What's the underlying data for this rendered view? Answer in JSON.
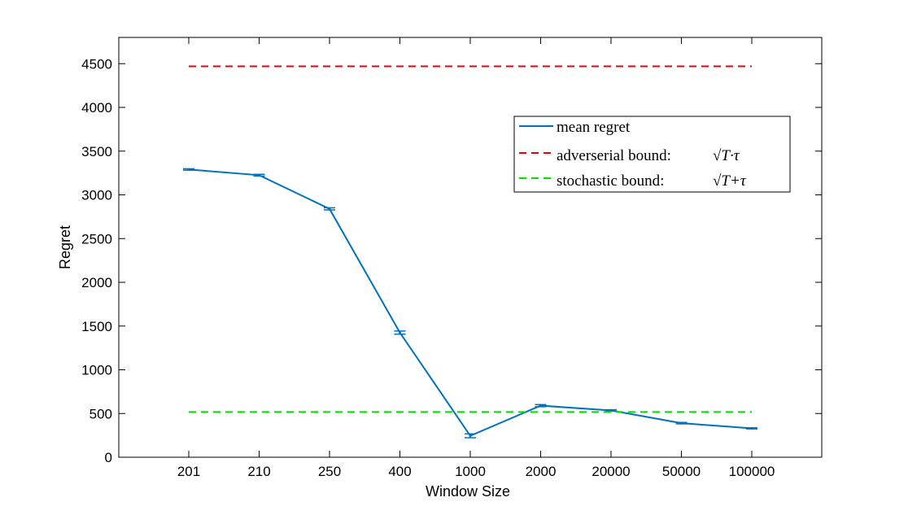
{
  "chart_data": {
    "type": "line",
    "xlabel": "Window Size",
    "ylabel": "Regret",
    "categories": [
      "201",
      "210",
      "250",
      "400",
      "1000",
      "2000",
      "20000",
      "50000",
      "100000"
    ],
    "ylim": [
      0,
      4800
    ],
    "yticks": [
      0,
      500,
      1000,
      1500,
      2000,
      2500,
      3000,
      3500,
      4000,
      4500
    ],
    "grid": false,
    "legend_position": "upper-right",
    "series": [
      {
        "name": "mean regret",
        "color": "#0072BD",
        "style": "solid",
        "values": [
          3290,
          3225,
          2840,
          1425,
          245,
          590,
          535,
          390,
          330
        ],
        "errors": [
          8,
          10,
          12,
          18,
          22,
          12,
          8,
          8,
          6
        ]
      },
      {
        "name": "adverserial bound:",
        "math": "√T·τ",
        "color": "#E8000B",
        "style": "dashed",
        "values": [
          4470,
          4470,
          4470,
          4470,
          4470,
          4470,
          4470,
          4470,
          4470
        ]
      },
      {
        "name": "stochastic bound:",
        "math": "√T+τ",
        "color": "#00E000",
        "style": "dashed",
        "values": [
          517,
          517,
          517,
          517,
          517,
          517,
          517,
          517,
          517
        ]
      }
    ]
  }
}
